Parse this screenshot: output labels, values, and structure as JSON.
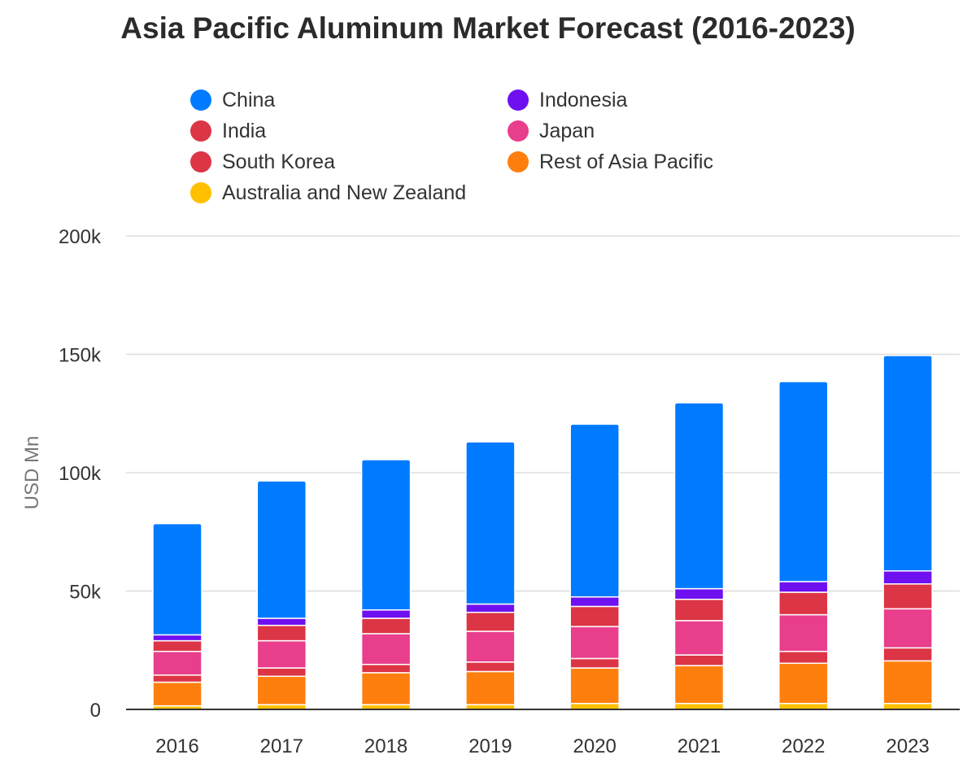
{
  "chart_data": {
    "type": "bar",
    "stacked": true,
    "title": "Asia Pacific Aluminum Market Forecast (2016-2023)",
    "xlabel": "",
    "ylabel": "USD Mn",
    "ylim": [
      0,
      200000
    ],
    "y_ticks": [
      0,
      50000,
      100000,
      150000,
      200000
    ],
    "y_tick_labels": [
      "0",
      "50k",
      "100k",
      "150k",
      "200k"
    ],
    "grid": true,
    "legend_position": "top",
    "categories": [
      "2016",
      "2017",
      "2018",
      "2019",
      "2020",
      "2021",
      "2022",
      "2023"
    ],
    "series": [
      {
        "name": "Australia and New Zealand",
        "color": "#FFC000",
        "values": [
          1500,
          2000,
          2000,
          2000,
          2500,
          2500,
          2500,
          2500
        ]
      },
      {
        "name": "Rest of Asia Pacific",
        "color": "#FF7F0E",
        "values": [
          10000,
          12000,
          13500,
          14000,
          15000,
          16000,
          17000,
          18000
        ]
      },
      {
        "name": "South Korea",
        "color": "#DC3545",
        "values": [
          3000,
          3500,
          3500,
          4000,
          4000,
          4500,
          5000,
          5500
        ]
      },
      {
        "name": "Japan",
        "color": "#E83E8C",
        "values": [
          10000,
          11500,
          13000,
          13000,
          13500,
          14500,
          15500,
          16500
        ]
      },
      {
        "name": "India",
        "color": "#DC3545",
        "values": [
          4500,
          6500,
          6500,
          8000,
          8500,
          9000,
          9500,
          10500
        ]
      },
      {
        "name": "Indonesia",
        "color": "#6F10F0",
        "values": [
          2500,
          3000,
          3500,
          3500,
          4000,
          4500,
          4500,
          5500
        ]
      },
      {
        "name": "China",
        "color": "#007BFF",
        "values": [
          47000,
          58000,
          63500,
          68500,
          73000,
          78500,
          84500,
          91000
        ]
      }
    ],
    "legend_order": [
      "China",
      "Indonesia",
      "India",
      "Japan",
      "South Korea",
      "Rest of Asia Pacific",
      "Australia and New Zealand"
    ]
  }
}
